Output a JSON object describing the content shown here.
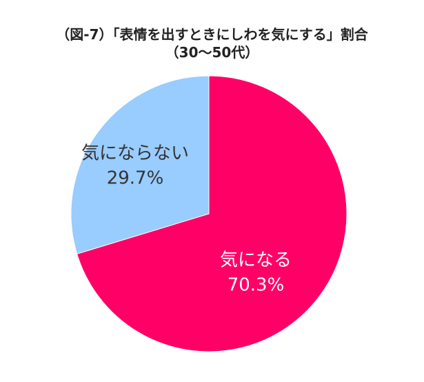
{
  "title_lines": [
    "（図-7）「表情を出すときにしわを気にする」割合",
    "（30〜50代）"
  ],
  "chart_data": {
    "type": "pie",
    "title": "（図-7）「表情を出すときにしわを気にする」割合（30〜50代）",
    "start_angle": "12 o'clock",
    "direction": "clockwise",
    "slices": [
      {
        "label": "気になる",
        "value": 70.3,
        "value_label": "70.3%",
        "color": "#ff0066",
        "label_color": "#ffffff"
      },
      {
        "label": "気にならない",
        "value": 29.7,
        "value_label": "29.7%",
        "color": "#99ccff",
        "label_color": "#333333"
      }
    ]
  }
}
